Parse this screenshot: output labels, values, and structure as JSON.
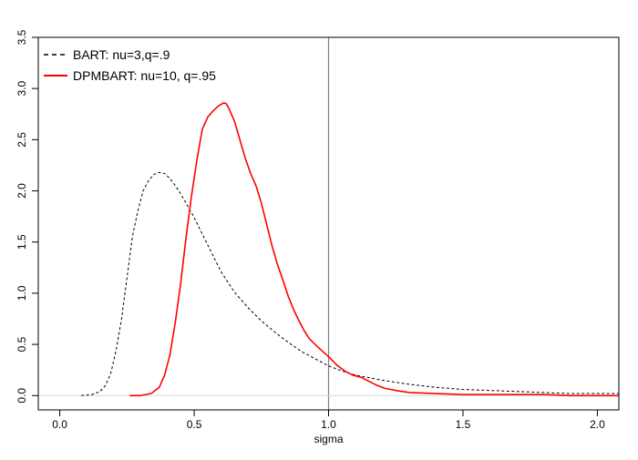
{
  "chart_data": {
    "type": "line",
    "title": "",
    "xlabel": "sigma",
    "ylabel": "",
    "xlim": [
      -0.08,
      2.08
    ],
    "ylim": [
      -0.14,
      3.5
    ],
    "x_ticks": [
      0.0,
      0.5,
      1.0,
      1.5,
      2.0
    ],
    "x_tick_labels": [
      "0.0",
      "0.5",
      "1.0",
      "1.5",
      "2.0"
    ],
    "y_ticks": [
      0.0,
      0.5,
      1.0,
      1.5,
      2.0,
      2.5,
      3.0,
      3.5
    ],
    "y_tick_labels": [
      "0.0",
      "0.5",
      "1.0",
      "1.5",
      "2.0",
      "2.5",
      "3.0",
      "3.5"
    ],
    "grid": false,
    "legend_position": "top-left",
    "reference_lines": [
      {
        "orientation": "vertical",
        "x": 1.0,
        "color": "#808080"
      },
      {
        "orientation": "horizontal",
        "y": 0.0,
        "color": "#d9d9d9"
      }
    ],
    "series": [
      {
        "name": "BART: nu=3,q=.9",
        "color": "#000000",
        "style": "dashed",
        "x": [
          0.08,
          0.12,
          0.15,
          0.17,
          0.19,
          0.21,
          0.23,
          0.25,
          0.27,
          0.29,
          0.31,
          0.33,
          0.35,
          0.37,
          0.39,
          0.41,
          0.43,
          0.45,
          0.47,
          0.5,
          0.53,
          0.56,
          0.6,
          0.65,
          0.7,
          0.75,
          0.8,
          0.85,
          0.9,
          0.95,
          1.0,
          1.05,
          1.1,
          1.2,
          1.3,
          1.4,
          1.5,
          1.6,
          1.7,
          1.8,
          1.9,
          2.0,
          2.08
        ],
        "y": [
          0.0,
          0.01,
          0.04,
          0.1,
          0.22,
          0.45,
          0.75,
          1.15,
          1.55,
          1.8,
          2.0,
          2.1,
          2.16,
          2.18,
          2.17,
          2.12,
          2.05,
          1.97,
          1.88,
          1.74,
          1.58,
          1.42,
          1.21,
          1.01,
          0.86,
          0.73,
          0.62,
          0.52,
          0.43,
          0.36,
          0.29,
          0.24,
          0.2,
          0.15,
          0.11,
          0.08,
          0.06,
          0.05,
          0.04,
          0.03,
          0.02,
          0.02,
          0.02
        ]
      },
      {
        "name": "DPMBART: nu=10, q=.95",
        "color": "#ff0000",
        "style": "solid",
        "x": [
          0.26,
          0.3,
          0.34,
          0.37,
          0.39,
          0.41,
          0.43,
          0.45,
          0.47,
          0.49,
          0.51,
          0.53,
          0.55,
          0.57,
          0.59,
          0.61,
          0.62,
          0.63,
          0.65,
          0.67,
          0.69,
          0.71,
          0.73,
          0.75,
          0.77,
          0.79,
          0.81,
          0.83,
          0.85,
          0.87,
          0.89,
          0.91,
          0.93,
          0.95,
          0.97,
          1.0,
          1.03,
          1.06,
          1.09,
          1.12,
          1.15,
          1.18,
          1.21,
          1.25,
          1.3,
          1.4,
          1.5,
          1.6,
          1.7,
          1.8,
          1.9,
          2.0,
          2.08
        ],
        "y": [
          0.0,
          0.0,
          0.02,
          0.08,
          0.2,
          0.4,
          0.72,
          1.1,
          1.55,
          1.95,
          2.3,
          2.6,
          2.72,
          2.78,
          2.83,
          2.86,
          2.85,
          2.8,
          2.68,
          2.5,
          2.32,
          2.17,
          2.05,
          1.88,
          1.67,
          1.46,
          1.28,
          1.13,
          0.97,
          0.84,
          0.73,
          0.63,
          0.55,
          0.5,
          0.45,
          0.38,
          0.3,
          0.24,
          0.2,
          0.18,
          0.14,
          0.1,
          0.07,
          0.05,
          0.03,
          0.02,
          0.01,
          0.01,
          0.01,
          0.01,
          0.0,
          0.0,
          0.0
        ]
      }
    ]
  }
}
